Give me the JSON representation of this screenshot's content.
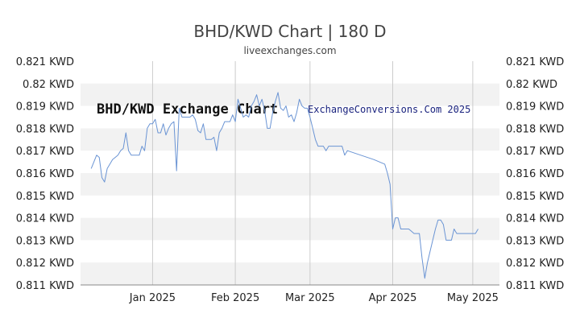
{
  "title": "BHD/KWD Chart | 180 D",
  "subtitle": "liveexchanges.com",
  "watermark_left": "BHD/KWD Exchange Chart",
  "watermark_right": "ExchangeConversions.Com 2025",
  "colors": {
    "line": "#6a94d4",
    "band": "#f2f2f2",
    "grid": "#cccccc",
    "axis": "#888888"
  },
  "chart_data": {
    "type": "line",
    "title": "BHD/KWD Chart | 180 D",
    "xlabel": "",
    "ylabel": "",
    "ylim": [
      0.811,
      0.821
    ],
    "y_ticks_left": [
      "0.821 KWD",
      "0.82 KWD",
      "0.819 KWD",
      "0.818 KWD",
      "0.817 KWD",
      "0.816 KWD",
      "0.815 KWD",
      "0.814 KWD",
      "0.813 KWD",
      "0.812 KWD",
      "0.811 KWD"
    ],
    "y_ticks_right": [
      "0.821 KWD",
      "0.82 KWD",
      "0.819 KWD",
      "0.818 KWD",
      "0.817 KWD",
      "0.816 KWD",
      "0.815 KWD",
      "0.814 KWD",
      "0.813 KWD",
      "0.812 KWD",
      "0.811 KWD"
    ],
    "x_ticks": [
      {
        "label": "Jan 2025",
        "day": 27
      },
      {
        "label": "Feb 2025",
        "day": 58
      },
      {
        "label": "Mar 2025",
        "day": 86
      },
      {
        "label": "Apr 2025",
        "day": 117
      },
      {
        "label": "May 2025",
        "day": 147
      }
    ],
    "xlim": [
      0,
      157
    ],
    "grid": true,
    "series": [
      {
        "points": [
          [
            4,
            0.8162
          ],
          [
            5,
            0.8165
          ],
          [
            6,
            0.8168
          ],
          [
            7,
            0.8167
          ],
          [
            8,
            0.8158
          ],
          [
            9,
            0.8156
          ],
          [
            10,
            0.8162
          ],
          [
            11,
            0.8164
          ],
          [
            12,
            0.8166
          ],
          [
            13,
            0.8167
          ],
          [
            14,
            0.8168
          ],
          [
            15,
            0.817
          ],
          [
            16,
            0.8171
          ],
          [
            17,
            0.8178
          ],
          [
            18,
            0.817
          ],
          [
            19,
            0.8168
          ],
          [
            20,
            0.8168
          ],
          [
            21,
            0.8168
          ],
          [
            22,
            0.8168
          ],
          [
            23,
            0.8172
          ],
          [
            24,
            0.817
          ],
          [
            25,
            0.818
          ],
          [
            26,
            0.8182
          ],
          [
            27,
            0.8182
          ],
          [
            28,
            0.8184
          ],
          [
            29,
            0.8178
          ],
          [
            30,
            0.8178
          ],
          [
            31,
            0.8182
          ],
          [
            32,
            0.8177
          ],
          [
            33,
            0.818
          ],
          [
            34,
            0.8182
          ],
          [
            35,
            0.8183
          ],
          [
            36,
            0.8161
          ],
          [
            37,
            0.8189
          ],
          [
            38,
            0.8185
          ],
          [
            39,
            0.8185
          ],
          [
            40,
            0.8185
          ],
          [
            41,
            0.8185
          ],
          [
            42,
            0.8186
          ],
          [
            43,
            0.8184
          ],
          [
            44,
            0.8179
          ],
          [
            45,
            0.8178
          ],
          [
            46,
            0.8182
          ],
          [
            47,
            0.8175
          ],
          [
            48,
            0.8175
          ],
          [
            49,
            0.8175
          ],
          [
            50,
            0.8176
          ],
          [
            51,
            0.817
          ],
          [
            52,
            0.8178
          ],
          [
            53,
            0.818
          ],
          [
            54,
            0.8183
          ],
          [
            55,
            0.8183
          ],
          [
            56,
            0.8183
          ],
          [
            57,
            0.8186
          ],
          [
            58,
            0.8183
          ],
          [
            59,
            0.8193
          ],
          [
            60,
            0.8189
          ],
          [
            61,
            0.8185
          ],
          [
            62,
            0.8186
          ],
          [
            63,
            0.8185
          ],
          [
            64,
            0.819
          ],
          [
            65,
            0.8192
          ],
          [
            66,
            0.8195
          ],
          [
            67,
            0.819
          ],
          [
            68,
            0.8193
          ],
          [
            69,
            0.8188
          ],
          [
            70,
            0.818
          ],
          [
            71,
            0.818
          ],
          [
            72,
            0.8187
          ],
          [
            73,
            0.8192
          ],
          [
            74,
            0.8196
          ],
          [
            75,
            0.8189
          ],
          [
            76,
            0.8188
          ],
          [
            77,
            0.819
          ],
          [
            78,
            0.8185
          ],
          [
            79,
            0.8186
          ],
          [
            80,
            0.8183
          ],
          [
            81,
            0.8187
          ],
          [
            82,
            0.8193
          ],
          [
            83,
            0.819
          ],
          [
            84,
            0.8189
          ],
          [
            85,
            0.8189
          ],
          [
            86,
            0.8185
          ],
          [
            87,
            0.818
          ],
          [
            88,
            0.8175
          ],
          [
            89,
            0.8172
          ],
          [
            90,
            0.8172
          ],
          [
            91,
            0.8172
          ],
          [
            92,
            0.817
          ],
          [
            93,
            0.8172
          ],
          [
            94,
            0.8172
          ],
          [
            95,
            0.8172
          ],
          [
            96,
            0.8172
          ],
          [
            97,
            0.8172
          ],
          [
            98,
            0.8172
          ],
          [
            99,
            0.8168
          ],
          [
            100,
            0.817
          ],
          [
            110,
            0.8166
          ],
          [
            114,
            0.8164
          ],
          [
            115,
            0.816
          ],
          [
            116,
            0.8155
          ],
          [
            117,
            0.8135
          ],
          [
            118,
            0.814
          ],
          [
            119,
            0.814
          ],
          [
            120,
            0.8135
          ],
          [
            121,
            0.8135
          ],
          [
            122,
            0.8135
          ],
          [
            123,
            0.8135
          ],
          [
            124,
            0.8134
          ],
          [
            125,
            0.8133
          ],
          [
            126,
            0.8133
          ],
          [
            127,
            0.8133
          ],
          [
            128,
            0.8122
          ],
          [
            129,
            0.8113
          ],
          [
            130,
            0.812
          ],
          [
            131,
            0.8125
          ],
          [
            132,
            0.813
          ],
          [
            133,
            0.8135
          ],
          [
            134,
            0.8139
          ],
          [
            135,
            0.8139
          ],
          [
            136,
            0.8137
          ],
          [
            137,
            0.813
          ],
          [
            138,
            0.813
          ],
          [
            139,
            0.813
          ],
          [
            140,
            0.8135
          ],
          [
            141,
            0.8133
          ],
          [
            142,
            0.8133
          ],
          [
            143,
            0.8133
          ],
          [
            144,
            0.8133
          ],
          [
            145,
            0.8133
          ],
          [
            146,
            0.8133
          ],
          [
            147,
            0.8133
          ],
          [
            148,
            0.8133
          ],
          [
            149,
            0.8135
          ]
        ]
      }
    ]
  }
}
